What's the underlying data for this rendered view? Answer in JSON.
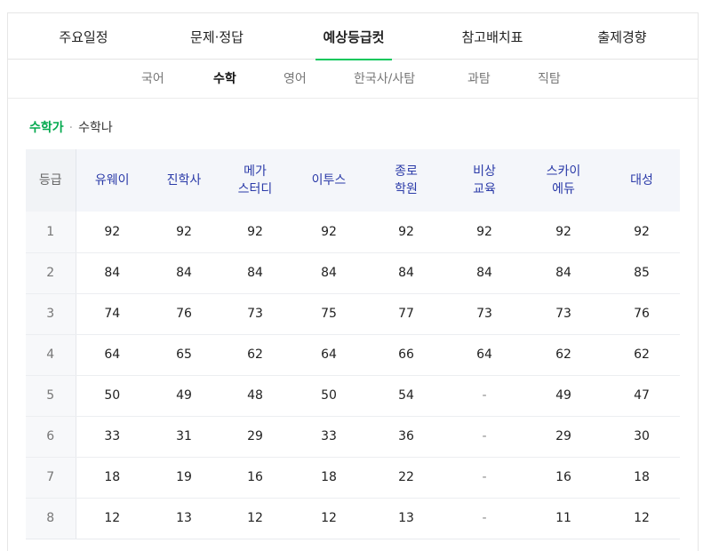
{
  "main_tabs": [
    {
      "label": "주요일정",
      "active": false
    },
    {
      "label": "문제·정답",
      "active": false
    },
    {
      "label": "예상등급컷",
      "active": true
    },
    {
      "label": "참고배치표",
      "active": false
    },
    {
      "label": "출제경향",
      "active": false
    }
  ],
  "sub_tabs": [
    {
      "label": "국어",
      "active": false
    },
    {
      "label": "수학",
      "active": true
    },
    {
      "label": "영어",
      "active": false
    },
    {
      "label": "한국사/사탐",
      "active": false
    },
    {
      "label": "과탐",
      "active": false
    },
    {
      "label": "직탐",
      "active": false
    }
  ],
  "subject_toggle": {
    "selected": "수학가",
    "separator": "·",
    "other": "수학나"
  },
  "table": {
    "grade_header": "등급",
    "providers": [
      {
        "line1": "유웨이",
        "line2": ""
      },
      {
        "line1": "진학사",
        "line2": ""
      },
      {
        "line1": "메가",
        "line2": "스터디"
      },
      {
        "line1": "이투스",
        "line2": ""
      },
      {
        "line1": "종로",
        "line2": "학원"
      },
      {
        "line1": "비상",
        "line2": "교육"
      },
      {
        "line1": "스카이",
        "line2": "에듀"
      },
      {
        "line1": "대성",
        "line2": ""
      }
    ],
    "rows": [
      {
        "grade": "1",
        "cells": [
          "92",
          "92",
          "92",
          "92",
          "92",
          "92",
          "92",
          "92"
        ]
      },
      {
        "grade": "2",
        "cells": [
          "84",
          "84",
          "84",
          "84",
          "84",
          "84",
          "84",
          "85"
        ]
      },
      {
        "grade": "3",
        "cells": [
          "74",
          "76",
          "73",
          "75",
          "77",
          "73",
          "73",
          "76"
        ]
      },
      {
        "grade": "4",
        "cells": [
          "64",
          "65",
          "62",
          "64",
          "66",
          "64",
          "62",
          "62"
        ]
      },
      {
        "grade": "5",
        "cells": [
          "50",
          "49",
          "48",
          "50",
          "54",
          "-",
          "49",
          "47"
        ]
      },
      {
        "grade": "6",
        "cells": [
          "33",
          "31",
          "29",
          "33",
          "36",
          "-",
          "29",
          "30"
        ]
      },
      {
        "grade": "7",
        "cells": [
          "18",
          "19",
          "16",
          "18",
          "22",
          "-",
          "16",
          "18"
        ]
      },
      {
        "grade": "8",
        "cells": [
          "12",
          "13",
          "12",
          "12",
          "13",
          "-",
          "11",
          "12"
        ]
      }
    ]
  },
  "colors": {
    "accent_green": "#03c75a",
    "provider_header": "#2a3aa8"
  }
}
